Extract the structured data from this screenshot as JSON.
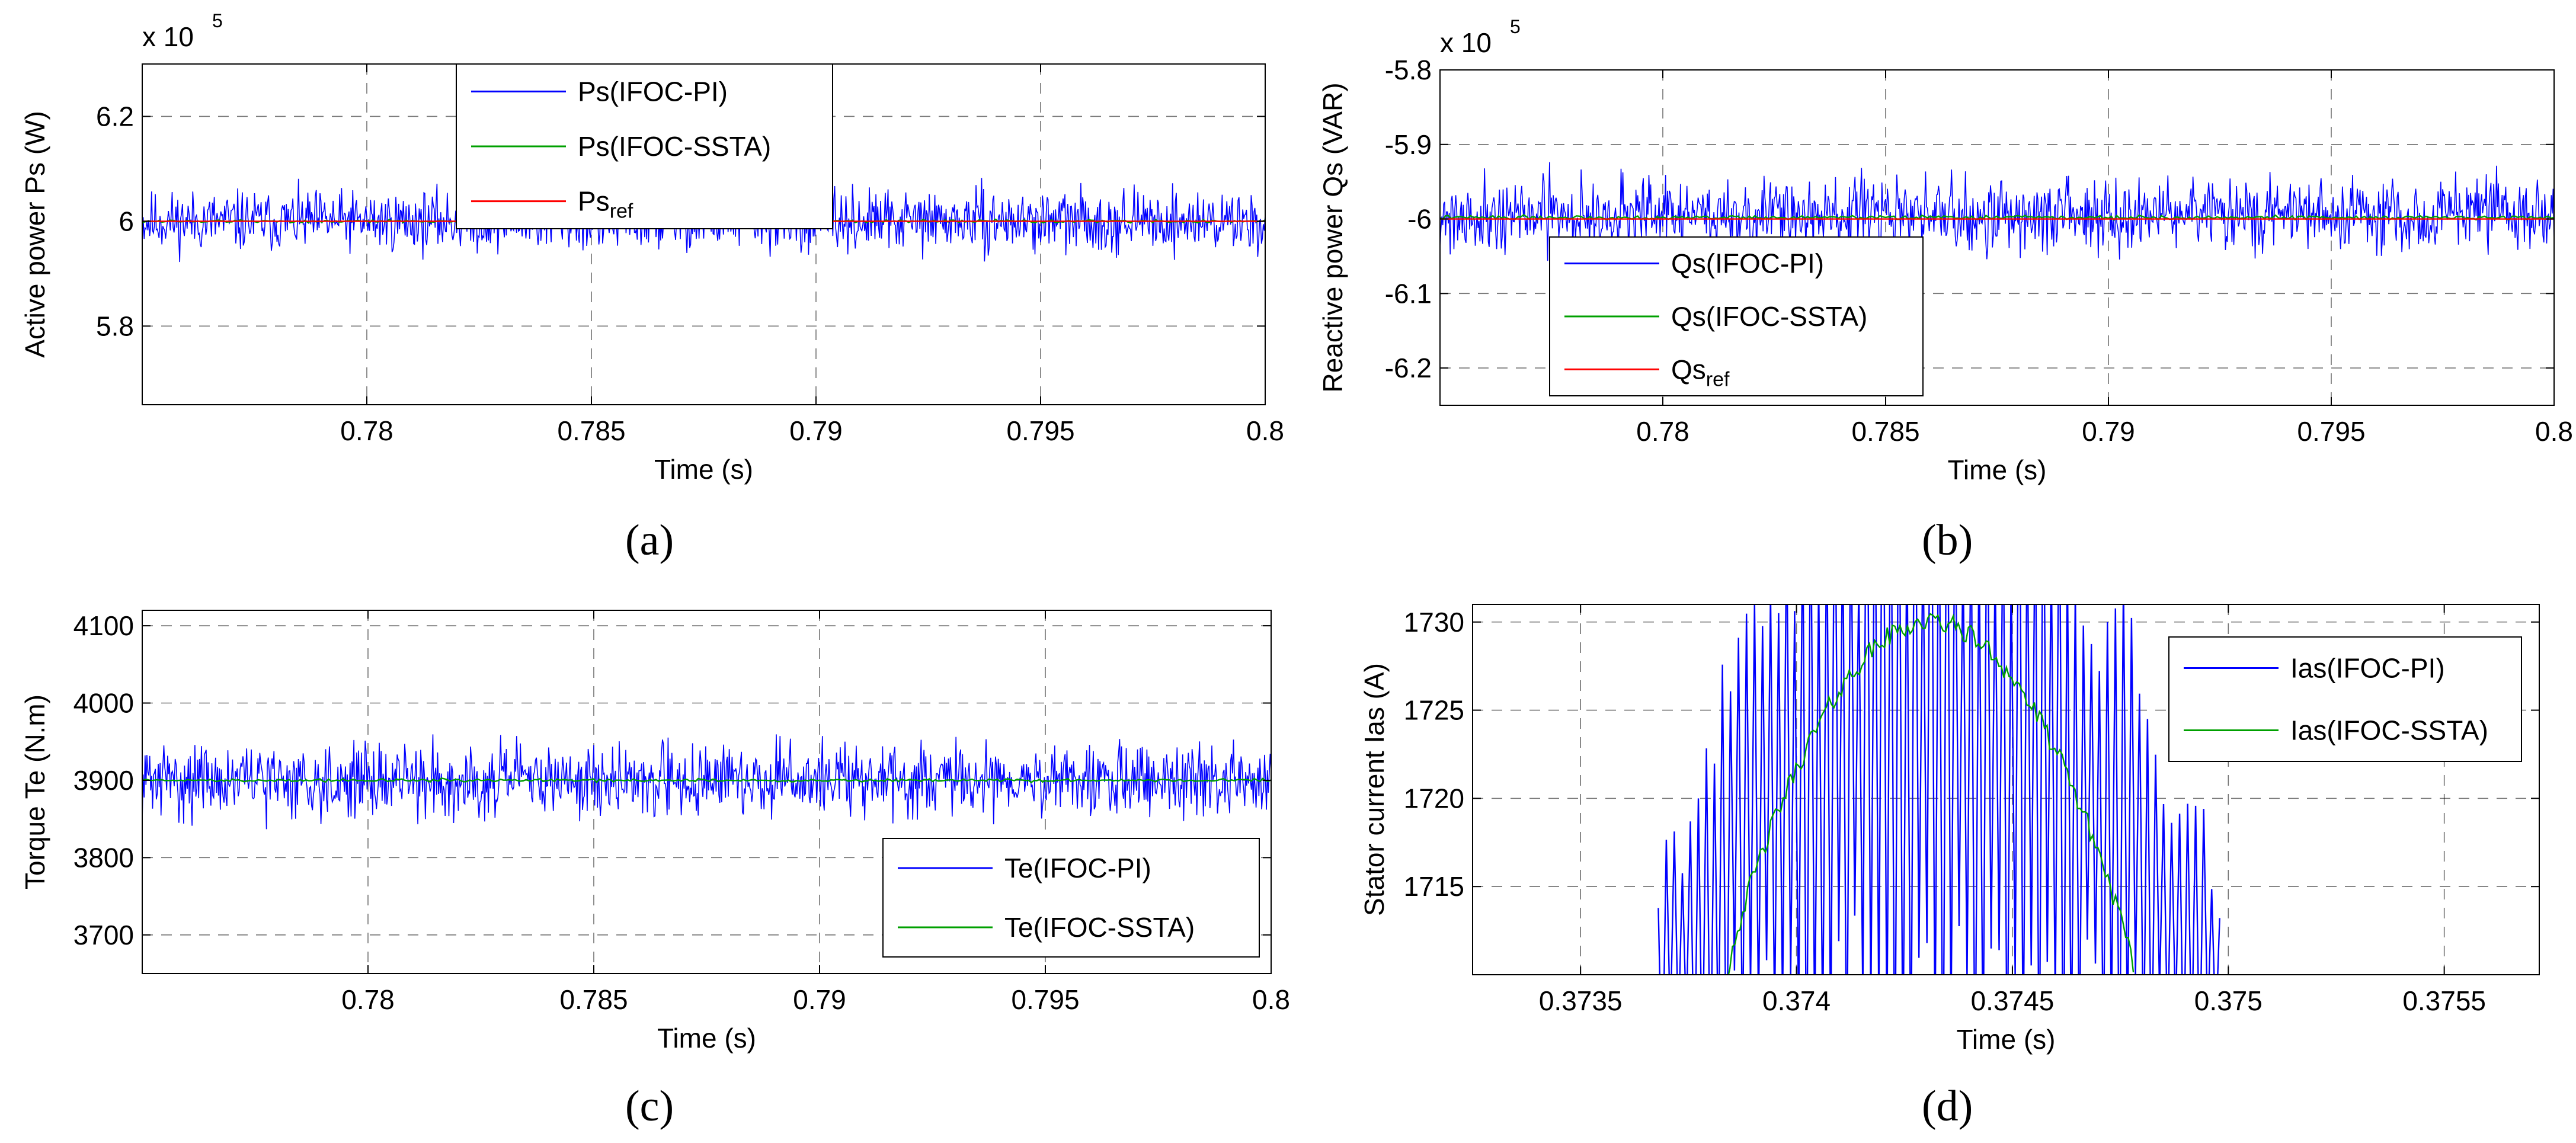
{
  "chart_data": [
    {
      "id": "a",
      "type": "line",
      "caption": "(a)",
      "xlabel": "Time (s)",
      "ylabel": "Active power Ps (W)",
      "multiplier": "x 10",
      "multiplier_exp": "5",
      "xlim": [
        0.775,
        0.8
      ],
      "ylim": [
        5.65,
        6.3
      ],
      "xticks": [
        0.78,
        0.785,
        0.79,
        0.795,
        0.8
      ],
      "xtick_labels": [
        "0.78",
        "0.785",
        "0.79",
        "0.795",
        "0.8"
      ],
      "yticks": [
        5.8,
        6,
        6.2
      ],
      "ytick_labels": [
        "5.8",
        "6",
        "6.2"
      ],
      "legend_position": "top-center",
      "series": [
        {
          "name": "Ps(IFOC-PI)",
          "label": "Ps(IFOC-PI)",
          "color": "#0000ff",
          "kind": "noise",
          "mean": 6.0,
          "amp": 0.085,
          "samples": 1200,
          "seed": 11
        },
        {
          "name": "Ps(IFOC-SSTA)",
          "label": "Ps(IFOC-SSTA)",
          "color": "#00a000",
          "kind": "noise",
          "mean": 6.0,
          "amp": 0.004,
          "samples": 400,
          "seed": 12
        },
        {
          "name": "Psref",
          "label": "Ps",
          "label_sub": "ref",
          "color": "#ff0000",
          "kind": "flat",
          "mean": 6.0
        }
      ]
    },
    {
      "id": "b",
      "type": "line",
      "caption": "(b)",
      "xlabel": "Time (s)",
      "ylabel": "Reactive power Qs (VAR)",
      "multiplier": "x 10",
      "multiplier_exp": "5",
      "xlim": [
        0.775,
        0.8
      ],
      "ylim": [
        -6.25,
        -5.8
      ],
      "xticks": [
        0.78,
        0.785,
        0.79,
        0.795,
        0.8
      ],
      "xtick_labels": [
        "0.78",
        "0.785",
        "0.79",
        "0.795",
        "0.8"
      ],
      "yticks": [
        -6.2,
        -6.1,
        -6,
        -5.9,
        -5.8
      ],
      "ytick_labels": [
        "-6.2",
        "-6.1",
        "-6",
        "-5.9",
        "-5.8"
      ],
      "legend_position": "bottom-left",
      "series": [
        {
          "name": "Qs(IFOC-PI)",
          "label": "Qs(IFOC-PI)",
          "color": "#0000ff",
          "kind": "noise",
          "mean": -5.995,
          "amp": 0.075,
          "samples": 1200,
          "seed": 21
        },
        {
          "name": "Qs(IFOC-SSTA)",
          "label": "Qs(IFOC-SSTA)",
          "color": "#00a000",
          "kind": "noise",
          "mean": -5.998,
          "amp": 0.004,
          "samples": 400,
          "seed": 22
        },
        {
          "name": "Qsref",
          "label": "Qs",
          "label_sub": "ref",
          "color": "#ff0000",
          "kind": "flat",
          "mean": -6.0
        }
      ]
    },
    {
      "id": "c",
      "type": "line",
      "caption": "(c)",
      "xlabel": "Time (s)",
      "ylabel": "Torque Te (N.m)",
      "xlim": [
        0.775,
        0.8
      ],
      "ylim": [
        3650,
        4120
      ],
      "xticks": [
        0.78,
        0.785,
        0.79,
        0.795,
        0.8
      ],
      "xtick_labels": [
        "0.78",
        "0.785",
        "0.79",
        "0.795",
        "0.8"
      ],
      "yticks": [
        3700,
        3800,
        3900,
        4000,
        4100
      ],
      "ytick_labels": [
        "3700",
        "3800",
        "3900",
        "4000",
        "4100"
      ],
      "legend_position": "bottom-right",
      "series": [
        {
          "name": "Te(IFOC-PI)",
          "label": "Te(IFOC-PI)",
          "color": "#0000ff",
          "kind": "noise",
          "mean": 3900,
          "amp": 70,
          "samples": 1200,
          "seed": 31
        },
        {
          "name": "Te(IFOC-SSTA)",
          "label": "Te(IFOC-SSTA)",
          "color": "#00a000",
          "kind": "noise",
          "mean": 3900,
          "amp": 3,
          "samples": 400,
          "seed": 32
        }
      ]
    },
    {
      "id": "d",
      "type": "line",
      "caption": "(d)",
      "xlabel": "Time (s)",
      "ylabel": "Stator current Ias (A)",
      "xlim": [
        0.37325,
        0.37572
      ],
      "ylim": [
        1710,
        1731
      ],
      "xticks": [
        0.3735,
        0.374,
        0.3745,
        0.375,
        0.3755
      ],
      "xtick_labels": [
        "0.3735",
        "0.374",
        "0.3745",
        "0.375",
        "0.3755"
      ],
      "yticks": [
        1715,
        1720,
        1725,
        1730
      ],
      "ytick_labels": [
        "1715",
        "1720",
        "1725",
        "1730"
      ],
      "legend_position": "top-right",
      "series": [
        {
          "name": "Ias(IFOC-PI)",
          "label": "Ias(IFOC-PI)",
          "color": "#0000ff",
          "kind": "oscillating_arch",
          "x_start": 0.37368,
          "x_end": 0.37498,
          "base": 1710,
          "peak": 1728,
          "amp": 14,
          "samples": 140,
          "seed": 41
        },
        {
          "name": "Ias(IFOC-SSTA)",
          "label": "Ias(IFOC-SSTA)",
          "color": "#00a000",
          "kind": "arch",
          "x_start": 0.37384,
          "x_end": 0.37478,
          "base": 1710,
          "peak": 1730,
          "amp": 0.6,
          "samples": 160,
          "seed": 42
        }
      ]
    }
  ]
}
